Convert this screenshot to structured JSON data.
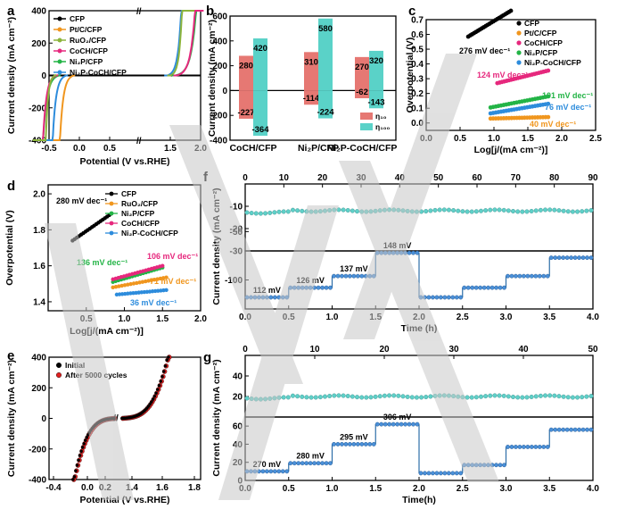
{
  "chart_data": [
    {
      "panel": "a",
      "type": "line",
      "xlabel": "Potential (V vs.RHE)",
      "ylabel": "Current density (mA cm⁻²)",
      "xlim": [
        -0.5,
        2.0
      ],
      "ylim": [
        -400,
        400
      ],
      "xticks": [
        "-0.5",
        "0.0",
        "0.5",
        "1.5",
        "2.0"
      ],
      "yticks": [
        "-400",
        "-200",
        "0",
        "200",
        "400"
      ],
      "series": [
        {
          "name": "CFP",
          "color": "#000000"
        },
        {
          "name": "Pt/C/CFP",
          "color": "#f0961e"
        },
        {
          "name": "RuO₂/CFP",
          "color": "#8cb43c"
        },
        {
          "name": "CoCH/CFP",
          "color": "#e6287d"
        },
        {
          "name": "Ni₂P/CFP",
          "color": "#23b446"
        },
        {
          "name": "Ni₂P-CoCH/CFP",
          "color": "#2d8cdc"
        }
      ]
    },
    {
      "panel": "b",
      "type": "bar",
      "ylabel": "Current density (mA cm⁻²)",
      "ylim": [
        -400,
        600
      ],
      "yticks": [
        "-400",
        "-200",
        "0",
        "200",
        "400",
        "600"
      ],
      "categories": [
        "CoCH/CFP",
        "Ni₂P/CFP",
        "Ni₂P-CoCH/CFP"
      ],
      "series": [
        {
          "name": "η₁₀",
          "color": "#e67873",
          "positive": [
            280,
            310,
            270
          ],
          "negative": [
            -227,
            -114,
            -62
          ]
        },
        {
          "name": "η₁₀₀",
          "color": "#5ad2c8",
          "positive": [
            420,
            580,
            320
          ],
          "negative": [
            -364,
            -224,
            -143
          ]
        }
      ]
    },
    {
      "panel": "c",
      "type": "scatter",
      "xlabel": "Log[j/(mA cm⁻²)]",
      "ylabel": "Overpotential (V)",
      "xlim": [
        0.0,
        2.5
      ],
      "ylim": [
        -0.05,
        0.7
      ],
      "xticks": [
        "0.0",
        "0.5",
        "1.0",
        "1.5",
        "2.0",
        "2.5"
      ],
      "yticks": [
        "0.0",
        "0.1",
        "0.2",
        "0.3",
        "0.4",
        "0.5",
        "0.6",
        "0.7"
      ],
      "series": [
        {
          "name": "CFP",
          "color": "#000000",
          "tafel": "276 mV dec⁻¹"
        },
        {
          "name": "Pt/C/CFP",
          "color": "#f0961e",
          "tafel": "40 mV dec⁻¹"
        },
        {
          "name": "CoCH/CFP",
          "color": "#e6287d",
          "tafel": "124 mV dec⁻¹"
        },
        {
          "name": "Ni₂P/CFP",
          "color": "#23b446",
          "tafel": "101 mV dec⁻¹"
        },
        {
          "name": "Ni₂P-CoCH/CFP",
          "color": "#2d8cdc",
          "tafel": "76 mV dec⁻¹"
        }
      ]
    },
    {
      "panel": "d",
      "type": "scatter",
      "xlabel": "Log[j/(mA cm⁻²)]",
      "ylabel": "Overpotential (V)",
      "xlim": [
        0.0,
        2.0
      ],
      "ylim": [
        1.35,
        2.05
      ],
      "xticks": [
        "0.5",
        "1.0",
        "1.5",
        "2.0"
      ],
      "yticks": [
        "1.4",
        "1.6",
        "1.8",
        "2.0"
      ],
      "series": [
        {
          "name": "CFP",
          "color": "#000000",
          "tafel": "280 mV dec⁻¹"
        },
        {
          "name": "RuO₂/CFP",
          "color": "#f0961e",
          "tafel": "71 mV dec⁻¹"
        },
        {
          "name": "Ni₂P/CFP",
          "color": "#23b446",
          "tafel": "136 mV dec⁻¹"
        },
        {
          "name": "CoCH/CFP",
          "color": "#e6287d",
          "tafel": "106 mV dec⁻¹"
        },
        {
          "name": "Ni₂P-CoCH/CFP",
          "color": "#2d8cdc",
          "tafel": "36 mV dec⁻¹"
        }
      ]
    },
    {
      "panel": "e",
      "type": "line",
      "xlabel": "Potential (V vs.RHE)",
      "ylabel": "Current density (mA cm⁻²)",
      "ylim": [
        -400,
        400
      ],
      "xticks": [
        "-0.4",
        "0.0",
        "0.2",
        "1.4",
        "1.6",
        "1.8"
      ],
      "yticks": [
        "-400",
        "-200",
        "0",
        "200",
        "400"
      ],
      "series": [
        {
          "name": "Initial",
          "color": "#000000"
        },
        {
          "name": "After 5000 cycles",
          "color": "#e02020"
        }
      ]
    },
    {
      "panel": "f",
      "type": "scatter",
      "xlabel": "Time (h)",
      "ylabel": "Current density (mA cm⁻²)",
      "top_axis": {
        "xlim": [
          0,
          90
        ],
        "xticks": [
          "0",
          "10",
          "20",
          "30",
          "40",
          "50",
          "60",
          "70",
          "80",
          "90"
        ],
        "yticks": [
          "-10",
          "-20",
          "-30"
        ],
        "ylim": [
          -30,
          0
        ]
      },
      "bottom_axis": {
        "xlim": [
          0,
          4.0
        ],
        "xticks": [
          "0.0",
          "0.5",
          "1.0",
          "1.5",
          "2.0",
          "2.5",
          "3.0",
          "3.5",
          "4.0"
        ],
        "yticks": [
          "-100",
          "-50"
        ],
        "ylim": [
          -130,
          -70
        ]
      },
      "steps": [
        {
          "x0": 0.0,
          "x1": 0.5,
          "y": -118,
          "label": "112 mV"
        },
        {
          "x0": 0.5,
          "x1": 1.0,
          "y": -108,
          "label": "126 mV"
        },
        {
          "x0": 1.0,
          "x1": 1.5,
          "y": -96,
          "label": "137 mV"
        },
        {
          "x0": 1.5,
          "x1": 2.0,
          "y": -72,
          "label": "148 mV"
        },
        {
          "x0": 2.0,
          "x1": 2.5,
          "y": -118,
          "label": ""
        },
        {
          "x0": 2.5,
          "x1": 3.0,
          "y": -108,
          "label": ""
        },
        {
          "x0": 3.0,
          "x1": 3.5,
          "y": -96,
          "label": ""
        },
        {
          "x0": 3.5,
          "x1": 4.0,
          "y": -77,
          "label": ""
        }
      ],
      "stability_level": -12
    },
    {
      "panel": "g",
      "type": "scatter",
      "xlabel": "Time(h)",
      "ylabel": "Current density (mA cm⁻²)",
      "top_axis": {
        "xlim": [
          0,
          50
        ],
        "xticks": [
          "0",
          "10",
          "20",
          "30",
          "40",
          "50"
        ],
        "yticks": [
          "20",
          "40"
        ],
        "ylim": [
          0,
          60
        ]
      },
      "bottom_axis": {
        "xlim": [
          0,
          4.0
        ],
        "xticks": [
          "0.0",
          "0.5",
          "1.0",
          "1.5",
          "2.0",
          "2.5",
          "3.0",
          "3.5",
          "4.0"
        ],
        "yticks": [
          "0",
          "20",
          "40",
          "60"
        ],
        "ylim": [
          0,
          70
        ]
      },
      "steps": [
        {
          "x0": 0.0,
          "x1": 0.5,
          "y": 10,
          "label": "270 mV"
        },
        {
          "x0": 0.5,
          "x1": 1.0,
          "y": 19,
          "label": "280 mV"
        },
        {
          "x0": 1.0,
          "x1": 1.5,
          "y": 40,
          "label": "295 mV"
        },
        {
          "x0": 1.5,
          "x1": 2.0,
          "y": 62,
          "label": "306 mV"
        },
        {
          "x0": 2.0,
          "x1": 2.5,
          "y": 8,
          "label": ""
        },
        {
          "x0": 2.5,
          "x1": 3.0,
          "y": 17,
          "label": ""
        },
        {
          "x0": 3.0,
          "x1": 3.5,
          "y": 37,
          "label": ""
        },
        {
          "x0": 3.5,
          "x1": 4.0,
          "y": 56,
          "label": ""
        }
      ],
      "stability_level": 20
    }
  ],
  "panels": [
    "a",
    "b",
    "c",
    "d",
    "e",
    "f",
    "g"
  ],
  "watermark_color": "#c8c8c8"
}
